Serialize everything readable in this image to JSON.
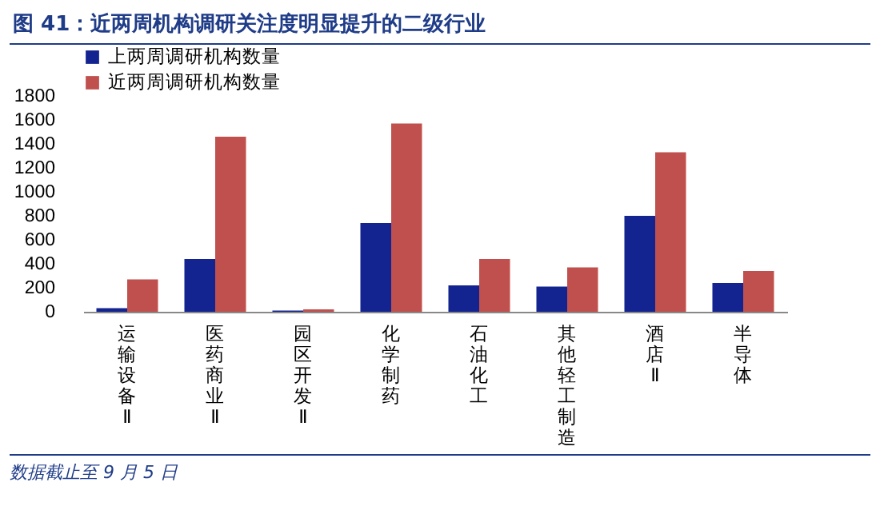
{
  "chart_data": {
    "type": "bar",
    "title": "图 41：近两周机构调研关注度明显提升的二级行业",
    "categories": [
      "运输设备Ⅱ",
      "医药商业Ⅱ",
      "园区开发Ⅱ",
      "化学制药",
      "石油化工",
      "其他轻工制造",
      "酒店Ⅱ",
      "半导体"
    ],
    "series": [
      {
        "name": "上两周调研机构数量",
        "color": "#13238f",
        "values": [
          30,
          440,
          10,
          740,
          220,
          210,
          800,
          240
        ]
      },
      {
        "name": "近两周调研机构数量",
        "color": "#c0504d",
        "values": [
          270,
          1460,
          20,
          1570,
          440,
          370,
          1330,
          340
        ]
      }
    ],
    "ylim": [
      0,
      1800
    ],
    "yticks": [
      0,
      200,
      400,
      600,
      800,
      1000,
      1200,
      1400,
      1600,
      1800
    ],
    "grid": false,
    "legend": "top",
    "annotations": [
      "数据截止至 9 月 5 日"
    ]
  }
}
